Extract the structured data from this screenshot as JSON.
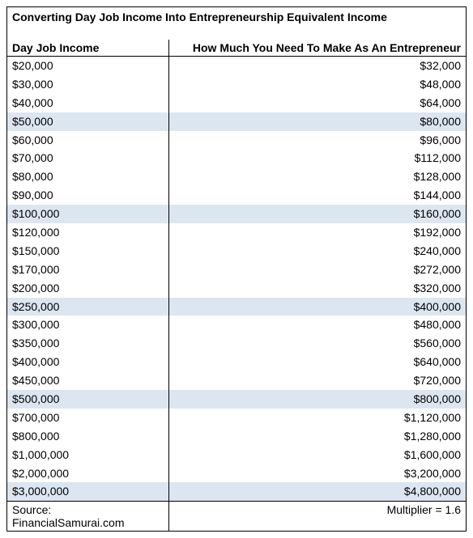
{
  "title": "Converting Day Job Income Into Entrepreneurship Equivalent Income",
  "columns": {
    "left": "Day Job Income",
    "right": "How Much You Need To Make As An Entrepreneur"
  },
  "highlight_color": "#dce6f1",
  "row_bg_default": "#ffffff",
  "text_color": "#000000",
  "border_color": "#000000",
  "font_size_pt": 10,
  "rows": [
    {
      "left": "$20,000",
      "right": "$32,000",
      "hl": false
    },
    {
      "left": "$30,000",
      "right": "$48,000",
      "hl": false
    },
    {
      "left": "$40,000",
      "right": "$64,000",
      "hl": false
    },
    {
      "left": "$50,000",
      "right": "$80,000",
      "hl": true
    },
    {
      "left": "$60,000",
      "right": "$96,000",
      "hl": false
    },
    {
      "left": "$70,000",
      "right": "$112,000",
      "hl": false
    },
    {
      "left": "$80,000",
      "right": "$128,000",
      "hl": false
    },
    {
      "left": "$90,000",
      "right": "$144,000",
      "hl": false
    },
    {
      "left": "$100,000",
      "right": "$160,000",
      "hl": true
    },
    {
      "left": "$120,000",
      "right": "$192,000",
      "hl": false
    },
    {
      "left": "$150,000",
      "right": "$240,000",
      "hl": false
    },
    {
      "left": "$170,000",
      "right": "$272,000",
      "hl": false
    },
    {
      "left": "$200,000",
      "right": "$320,000",
      "hl": false
    },
    {
      "left": "$250,000",
      "right": "$400,000",
      "hl": true
    },
    {
      "left": "$300,000",
      "right": "$480,000",
      "hl": false
    },
    {
      "left": "$350,000",
      "right": "$560,000",
      "hl": false
    },
    {
      "left": "$400,000",
      "right": "$640,000",
      "hl": false
    },
    {
      "left": "$450,000",
      "right": "$720,000",
      "hl": false
    },
    {
      "left": "$500,000",
      "right": "$800,000",
      "hl": true
    },
    {
      "left": "$700,000",
      "right": "$1,120,000",
      "hl": false
    },
    {
      "left": "$800,000",
      "right": "$1,280,000",
      "hl": false
    },
    {
      "left": "$1,000,000",
      "right": "$1,600,000",
      "hl": false
    },
    {
      "left": "$2,000,000",
      "right": "$3,200,000",
      "hl": false
    },
    {
      "left": "$3,000,000",
      "right": "$4,800,000",
      "hl": true
    }
  ],
  "footer": {
    "left": "Source: FinancialSamurai.com",
    "right": "Multiplier = 1.6"
  }
}
